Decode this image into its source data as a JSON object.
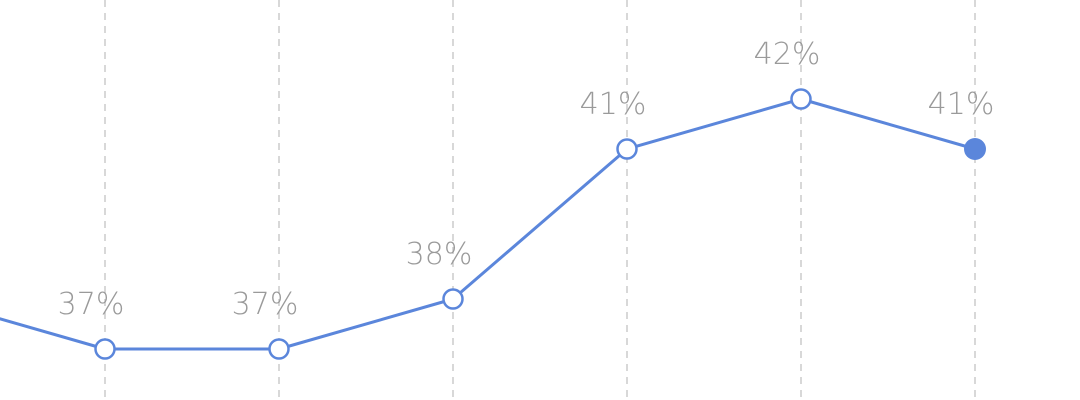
{
  "chart_data": {
    "type": "line",
    "series": [
      {
        "values": [
          38,
          37,
          37,
          38,
          41,
          42,
          41
        ],
        "labels": [
          "",
          "37%",
          "37%",
          "38%",
          "41%",
          "42%",
          "41%"
        ],
        "color": "#5b86db"
      }
    ],
    "y_unit": "%",
    "grid": "vertical dashed",
    "highlight_last_point": true,
    "grid_color": "#cccccc",
    "label_color": "#9a9a9a"
  }
}
